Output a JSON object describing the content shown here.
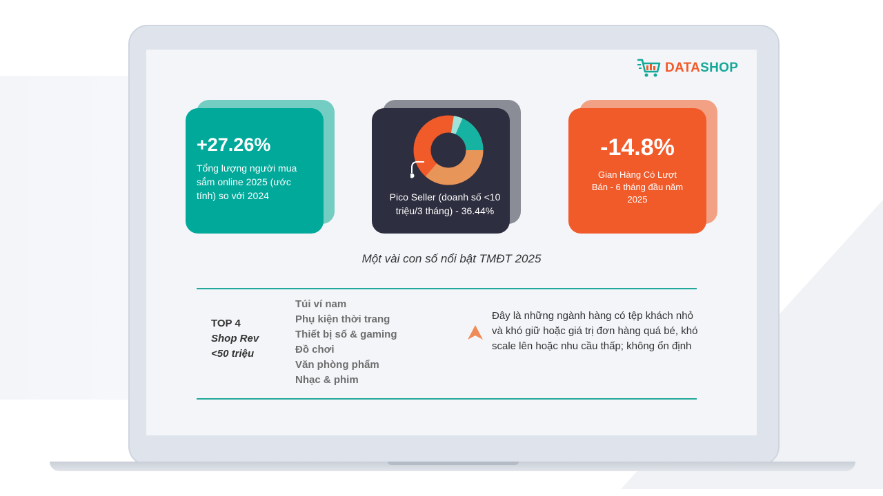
{
  "brand": {
    "logo_part1": "DATA",
    "logo_part2": "SHOP",
    "color_orange": "#f15a29",
    "color_teal": "#00a99a",
    "color_dark": "#2d2e3f"
  },
  "stats": {
    "growth": {
      "value": "+27.26%",
      "description": "Tổng lượng người mua sắm online 2025 (ước tính) so với 2024"
    },
    "pico": {
      "description": "Pico Seller (doanh số <10 triệu/3 tháng) - 36.44%",
      "highlight_percent": 36.44
    },
    "decline": {
      "value": "-14.8%",
      "description": "Gian Hàng Có Lượt Bán - 6 tháng đầu năm 2025"
    }
  },
  "caption": "Một vài con số nổi bật TMĐT 2025",
  "top_block": {
    "line1": "TOP 4",
    "line2": "Shop Rev",
    "line3": "<50 triệu"
  },
  "categories": [
    "Túi ví nam",
    "Phụ kiện thời trang",
    "Thiết bị số & gaming",
    "Đồ chơi",
    "Văn phòng phẩm",
    "Nhạc & phim"
  ],
  "note": "Đây là những ngành hàng có tệp khách nhỏ và khó giữ hoặc giá trị đơn hàng quá bé, khó scale lên hoặc nhu cầu thấp; không ổn định",
  "icons": {
    "logo": "shopping-cart-icon",
    "warning": "triangle-up-icon"
  }
}
